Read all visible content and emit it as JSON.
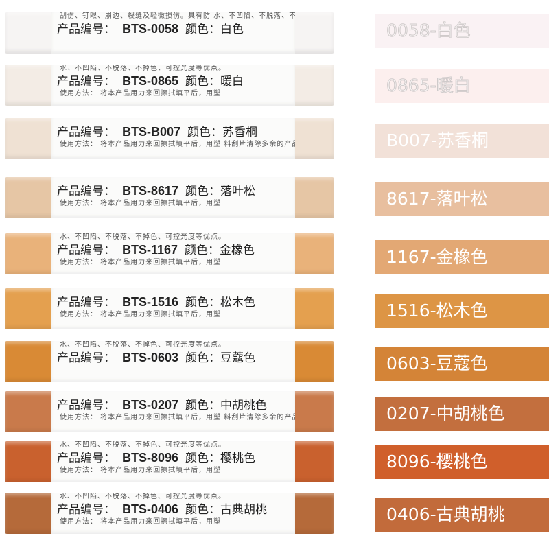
{
  "products": [
    {
      "code": "BTS-0058",
      "color_name": "白色",
      "swatch_label": "0058-白色",
      "crayon_color": "#f6f4f3",
      "swatch_color": "#faf2f4",
      "text_above": "刮伤、钉眼、崩边、裂缝及轻微损伤。具有防 水、不凹陷、不脱落、不掉色、可控光度等优点。",
      "text_below": ""
    },
    {
      "code": "BTS-0865",
      "color_name": "暖白",
      "swatch_label": "0865-暖白",
      "crayon_color": "#f3ece5",
      "swatch_color": "#fcefee",
      "text_above": "水、不凹陷、不脱落、不掉色、可控光度等优点。",
      "text_below": "使用方法： 将本产品用力来回擦拭填平后，用塑"
    },
    {
      "code": "BTS-B007",
      "color_name": "苏香桐",
      "swatch_label": "B007-苏香桐",
      "crayon_color": "#efe1d3",
      "swatch_color": "#f2e1d8",
      "text_above": "",
      "text_below": "使用方法： 将本产品用力来回擦拭填平后，用塑 料刮片清除多余的产品"
    },
    {
      "code": "BTS-8617",
      "color_name": "落叶松",
      "swatch_label": "8617-落叶松",
      "crayon_color": "#e6c6a5",
      "swatch_color": "#e8bf9f",
      "text_above": "",
      "text_below": "使用方法： 将本产品用力来回擦拭填平后，用塑"
    },
    {
      "code": "BTS-1167",
      "color_name": "金橡色",
      "swatch_label": "1167-金橡色",
      "crayon_color": "#e9b27a",
      "swatch_color": "#e3a874",
      "text_above": "水、不凹陷、不脱落、不掉色、可控光度等优点。",
      "text_below": "使用方法： 将本产品用力来回擦拭填平后，用塑"
    },
    {
      "code": "BTS-1516",
      "color_name": "松木色",
      "swatch_label": "1516-松木色",
      "crayon_color": "#e4a04f",
      "swatch_color": "#dd9545",
      "text_above": "",
      "text_below": "使用方法： 将本产品用力来回擦拭填平后，用塑"
    },
    {
      "code": "BTS-0603",
      "color_name": "豆蔻色",
      "swatch_label": "0603-豆蔻色",
      "crayon_color": "#d98a35",
      "swatch_color": "#d48437",
      "text_above": "水、不凹陷、不脱落、不掉色、可控光度等优点。",
      "text_below": ""
    },
    {
      "code": "BTS-0207",
      "color_name": "中胡桃色",
      "swatch_label": "0207-中胡桃色",
      "crayon_color": "#c97a4b",
      "swatch_color": "#c36f3e",
      "text_above": "",
      "text_below": "使用方法： 将本产品用力来回擦拭填平后，用塑 料刮片清除多余的产品"
    },
    {
      "code": "BTS-8096",
      "color_name": "樱桃色",
      "swatch_label": "8096-樱桃色",
      "crayon_color": "#c9612e",
      "swatch_color": "#d05f2b",
      "text_above": "水、不凹陷、不脱落、不掉色、可控光度等优点。",
      "text_below": "使用方法： 将本产品用力来回擦拭填平后，用塑"
    },
    {
      "code": "BTS-0406",
      "color_name": "古典胡桃",
      "swatch_label": "0406-古典胡桃",
      "crayon_color": "#b56a3a",
      "swatch_color": "#c26b3b",
      "text_above": "水、不凹陷、不脱落、不掉色、可控光度等优点。",
      "text_below": "使用方法： 将本产品用力来回擦拭填平后，用塑"
    }
  ],
  "labels": {
    "code_prefix": "产品编号：",
    "color_prefix": "颜色："
  }
}
